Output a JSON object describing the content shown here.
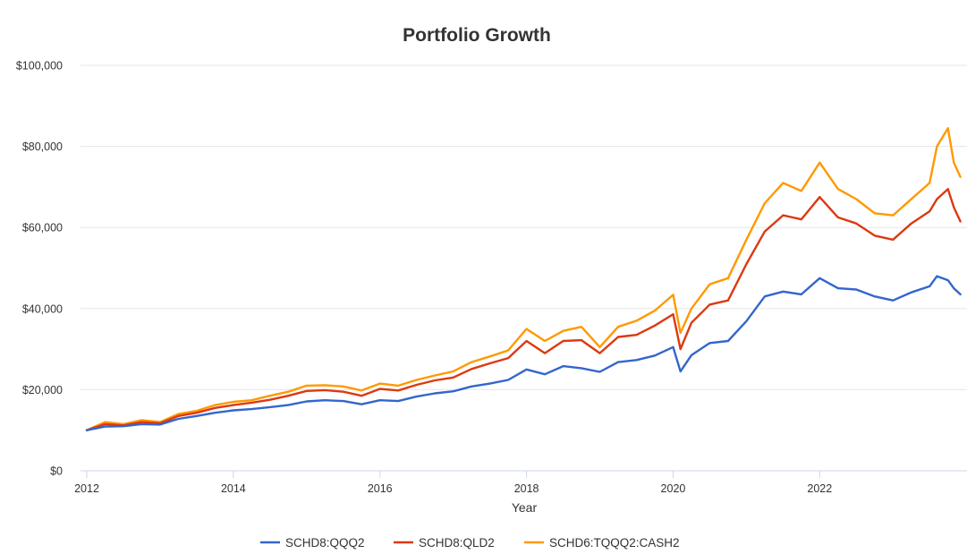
{
  "chart_data": {
    "type": "line",
    "title": "Portfolio Growth",
    "xlabel": "Year",
    "ylabel": "",
    "x_tick_labels": [
      "2012",
      "2014",
      "2016",
      "2018",
      "2020",
      "2022"
    ],
    "y_tick_labels": [
      "$0",
      "$20,000",
      "$40,000",
      "$60,000",
      "$80,000",
      "$100,000"
    ],
    "xlim": [
      2012.0,
      2024.0
    ],
    "ylim": [
      0,
      100000
    ],
    "grid": "horizontal",
    "legend_position": "bottom",
    "x": [
      2012.0,
      2012.25,
      2012.5,
      2012.75,
      2013.0,
      2013.25,
      2013.5,
      2013.75,
      2014.0,
      2014.25,
      2014.5,
      2014.75,
      2015.0,
      2015.25,
      2015.5,
      2015.75,
      2016.0,
      2016.25,
      2016.5,
      2016.75,
      2017.0,
      2017.25,
      2017.5,
      2017.75,
      2018.0,
      2018.25,
      2018.5,
      2018.75,
      2019.0,
      2019.25,
      2019.5,
      2019.75,
      2020.0,
      2020.1,
      2020.25,
      2020.5,
      2020.75,
      2021.0,
      2021.25,
      2021.5,
      2021.75,
      2022.0,
      2022.25,
      2022.5,
      2022.75,
      2023.0,
      2023.25,
      2023.5,
      2023.6,
      2023.75,
      2023.83,
      2023.92
    ],
    "series": [
      {
        "name": "SCHD8:QQQ2",
        "color": "#3366cc",
        "values": [
          10000,
          10900,
          11000,
          11500,
          11400,
          12800,
          13500,
          14300,
          14900,
          15200,
          15700,
          16200,
          17100,
          17400,
          17200,
          16400,
          17400,
          17200,
          18300,
          19100,
          19600,
          20800,
          21500,
          22400,
          25000,
          23800,
          25800,
          25300,
          24400,
          26800,
          27300,
          28400,
          30500,
          24500,
          28500,
          31500,
          32000,
          36900,
          43000,
          44200,
          43500,
          47500,
          45000,
          44700,
          43000,
          42000,
          44000,
          45500,
          48000,
          47000,
          45000,
          43500
        ]
      },
      {
        "name": "SCHD8:QLD2",
        "color": "#dc3912",
        "values": [
          10000,
          11500,
          11200,
          12000,
          11700,
          13500,
          14300,
          15500,
          16200,
          16800,
          17500,
          18500,
          19700,
          19900,
          19500,
          18500,
          20200,
          19800,
          21200,
          22300,
          23000,
          25100,
          26500,
          27800,
          32000,
          29000,
          32000,
          32200,
          29000,
          33000,
          33500,
          35800,
          38600,
          30000,
          36500,
          41000,
          42000,
          51000,
          59000,
          63000,
          62000,
          67500,
          62500,
          61000,
          58000,
          57000,
          61000,
          64000,
          67000,
          69500,
          65000,
          61500
        ]
      },
      {
        "name": "SCHD6:TQQQ2:CASH2",
        "color": "#ff9900",
        "values": [
          10000,
          12000,
          11500,
          12500,
          12000,
          14000,
          14800,
          16200,
          17000,
          17400,
          18500,
          19500,
          21000,
          21100,
          20800,
          19800,
          21500,
          21000,
          22400,
          23500,
          24500,
          26800,
          28200,
          29700,
          35000,
          32000,
          34500,
          35500,
          30500,
          35500,
          37000,
          39500,
          43400,
          34000,
          40000,
          46000,
          47500,
          57000,
          66000,
          71000,
          69000,
          76000,
          69500,
          67000,
          63500,
          63000,
          67000,
          71000,
          80000,
          84500,
          76000,
          72500
        ]
      }
    ]
  }
}
